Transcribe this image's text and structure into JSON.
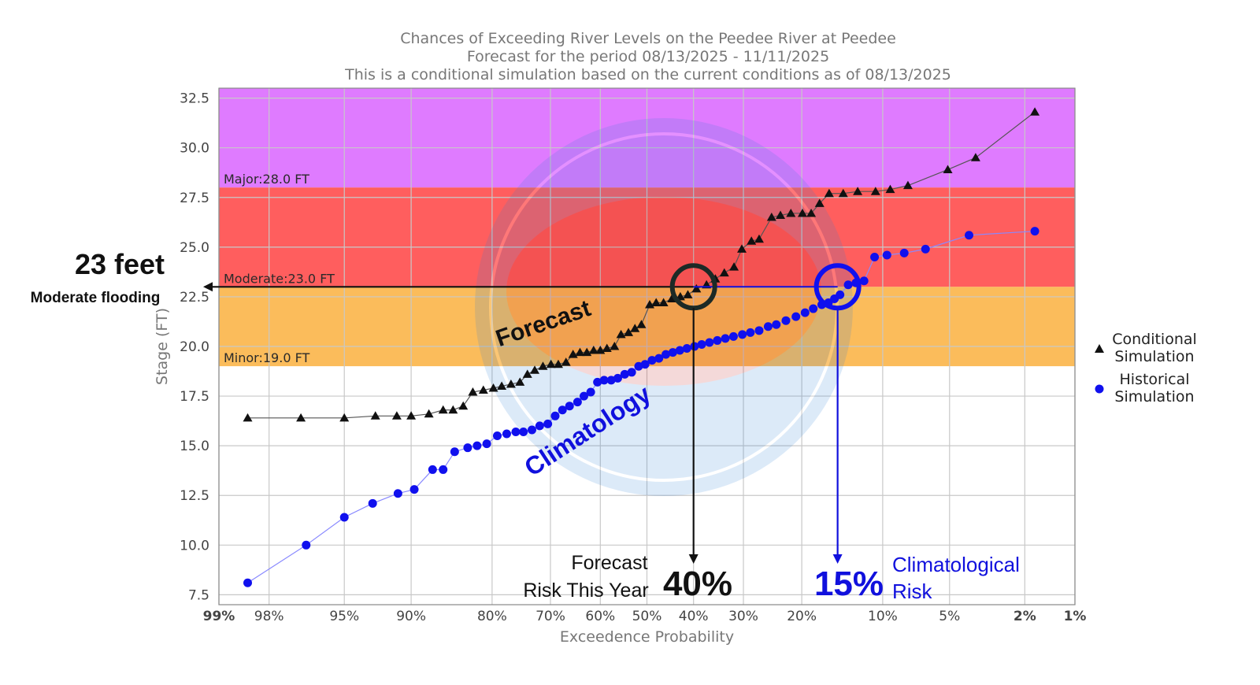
{
  "chart_data": {
    "type": "scatter",
    "title": [
      "Chances of Exceeding River Levels on the Peedee River at Peedee",
      "Forecast for the period 08/13/2025 - 11/11/2025",
      "This is a conditional simulation based on the current conditions as of 08/13/2025"
    ],
    "xlabel": "Exceedence Probability",
    "ylabel": "Stage (FT)",
    "x_scale": "normal-probability",
    "x_ticks": [
      "99%",
      "98%",
      "95%",
      "90%",
      "80%",
      "70%",
      "60%",
      "50%",
      "40%",
      "30%",
      "20%",
      "10%",
      "5%",
      "2%",
      "1%"
    ],
    "y_ticks": [
      "7.5",
      "10.0",
      "12.5",
      "15.0",
      "17.5",
      "20.0",
      "22.5",
      "25.0",
      "27.5",
      "30.0",
      "32.5"
    ],
    "ylim": [
      7,
      33
    ],
    "grid": true,
    "flood_stages": [
      {
        "name": "Major",
        "label": "Major:28.0 FT",
        "from": 28.0,
        "to": 33,
        "color": "#df7bff"
      },
      {
        "name": "Moderate",
        "label": "Moderate:23.0 FT",
        "from": 23.0,
        "to": 28.0,
        "color": "#ff5e5e"
      },
      {
        "name": "Minor",
        "label": "Minor:19.0 FT",
        "from": 19.0,
        "to": 23.0,
        "color": "#fbbc5b"
      }
    ],
    "legend": {
      "position": "right",
      "entries": [
        {
          "lines": [
            "Conditional",
            "Simulation"
          ],
          "marker": "triangle",
          "color": "#111111"
        },
        {
          "lines": [
            "Historical",
            "Simulation"
          ],
          "marker": "circle",
          "color": "#1010ee"
        }
      ]
    },
    "series": [
      {
        "name": "Conditional Simulation",
        "marker": "triangle",
        "color": "#111111",
        "line_color": "#555555",
        "points": [
          [
            98.5,
            16.4
          ],
          [
            97,
            16.4
          ],
          [
            95,
            16.4
          ],
          [
            93,
            16.5
          ],
          [
            91.3,
            16.5
          ],
          [
            90,
            16.5
          ],
          [
            88.2,
            16.6
          ],
          [
            86.6,
            16.8
          ],
          [
            85.4,
            16.8
          ],
          [
            84.1,
            17.0
          ],
          [
            82.8,
            17.7
          ],
          [
            81.3,
            17.8
          ],
          [
            79.8,
            17.9
          ],
          [
            78.5,
            18.0
          ],
          [
            77,
            18.1
          ],
          [
            75.5,
            18.2
          ],
          [
            74.2,
            18.6
          ],
          [
            72.9,
            18.8
          ],
          [
            71.4,
            19.0
          ],
          [
            69.9,
            19.1
          ],
          [
            68.5,
            19.1
          ],
          [
            67,
            19.2
          ],
          [
            65.6,
            19.6
          ],
          [
            64.2,
            19.7
          ],
          [
            62.8,
            19.7
          ],
          [
            61.4,
            19.8
          ],
          [
            60,
            19.8
          ],
          [
            58.6,
            19.9
          ],
          [
            57,
            20.0
          ],
          [
            55.6,
            20.6
          ],
          [
            54,
            20.7
          ],
          [
            52.6,
            20.9
          ],
          [
            51.2,
            21.1
          ],
          [
            49.4,
            22.1
          ],
          [
            48,
            22.2
          ],
          [
            46.4,
            22.2
          ],
          [
            44.6,
            22.4
          ],
          [
            42.8,
            22.5
          ],
          [
            41.2,
            22.6
          ],
          [
            39.4,
            22.9
          ],
          [
            37.3,
            23.1
          ],
          [
            35.5,
            23.4
          ],
          [
            33.7,
            23.7
          ],
          [
            31.8,
            24.0
          ],
          [
            30.3,
            24.9
          ],
          [
            28.5,
            25.3
          ],
          [
            27.1,
            25.4
          ],
          [
            24.9,
            26.5
          ],
          [
            23.4,
            26.6
          ],
          [
            21.7,
            26.7
          ],
          [
            19.9,
            26.7
          ],
          [
            18.6,
            26.7
          ],
          [
            17.4,
            27.2
          ],
          [
            16.1,
            27.7
          ],
          [
            14.3,
            27.7
          ],
          [
            12.6,
            27.8
          ],
          [
            10.7,
            27.8
          ],
          [
            9.3,
            27.9
          ],
          [
            7.8,
            28.1
          ],
          [
            5.1,
            28.9
          ],
          [
            3.7,
            29.5
          ],
          [
            1.75,
            31.8
          ]
        ]
      },
      {
        "name": "Historical Simulation",
        "marker": "circle",
        "color": "#1010ee",
        "line_color": "#8888ff",
        "points": [
          [
            98.5,
            8.1
          ],
          [
            96.8,
            10.0
          ],
          [
            95,
            11.4
          ],
          [
            93.2,
            12.1
          ],
          [
            91.2,
            12.6
          ],
          [
            89.7,
            12.8
          ],
          [
            87.8,
            13.8
          ],
          [
            86.6,
            13.8
          ],
          [
            85.2,
            14.7
          ],
          [
            83.5,
            14.9
          ],
          [
            82.2,
            15.0
          ],
          [
            80.8,
            15.1
          ],
          [
            79.2,
            15.5
          ],
          [
            77.7,
            15.6
          ],
          [
            76.2,
            15.7
          ],
          [
            74.9,
            15.7
          ],
          [
            73.4,
            15.8
          ],
          [
            72,
            16.0
          ],
          [
            70.5,
            16.1
          ],
          [
            69.1,
            16.5
          ],
          [
            67.7,
            16.8
          ],
          [
            66.3,
            17.0
          ],
          [
            64.7,
            17.2
          ],
          [
            63.4,
            17.5
          ],
          [
            62,
            17.7
          ],
          [
            60.6,
            18.2
          ],
          [
            59.2,
            18.3
          ],
          [
            57.7,
            18.3
          ],
          [
            56.3,
            18.4
          ],
          [
            54.8,
            18.6
          ],
          [
            53.3,
            18.7
          ],
          [
            51.8,
            19.0
          ],
          [
            50.4,
            19.1
          ],
          [
            48.9,
            19.3
          ],
          [
            47.4,
            19.4
          ],
          [
            45.9,
            19.6
          ],
          [
            44.4,
            19.7
          ],
          [
            42.9,
            19.8
          ],
          [
            41.4,
            19.9
          ],
          [
            39.8,
            20.0
          ],
          [
            38.3,
            20.1
          ],
          [
            36.7,
            20.2
          ],
          [
            35.1,
            20.3
          ],
          [
            33.5,
            20.4
          ],
          [
            31.9,
            20.5
          ],
          [
            30.2,
            20.6
          ],
          [
            28.7,
            20.7
          ],
          [
            27.1,
            20.8
          ],
          [
            25.5,
            21.0
          ],
          [
            24.1,
            21.1
          ],
          [
            22.5,
            21.3
          ],
          [
            20.9,
            21.5
          ],
          [
            19.5,
            21.7
          ],
          [
            18.3,
            21.9
          ],
          [
            17.1,
            22.1
          ],
          [
            16.2,
            22.2
          ],
          [
            15.4,
            22.4
          ],
          [
            14.7,
            22.6
          ],
          [
            13.7,
            23.1
          ],
          [
            12.8,
            23.2
          ],
          [
            11.9,
            23.3
          ],
          [
            10.8,
            24.5
          ],
          [
            9.6,
            24.6
          ],
          [
            8.1,
            24.7
          ],
          [
            6.5,
            24.9
          ],
          [
            4.0,
            25.6
          ],
          [
            1.75,
            25.8
          ]
        ]
      }
    ],
    "annotations": {
      "flood_line": {
        "stage": 23.0,
        "title": "23 feet",
        "subtitle": "Moderate flooding"
      },
      "forecast": {
        "label": "Forecast",
        "probability": 40,
        "pct_text": "40%",
        "risk_lines": [
          "Forecast",
          "Risk This Year"
        ],
        "color": "#111111"
      },
      "climatology": {
        "label": "Climatology",
        "probability": 15,
        "pct_text": "15%",
        "risk_lines": [
          "Climatological",
          "Risk"
        ],
        "color": "#1010dd"
      }
    }
  }
}
